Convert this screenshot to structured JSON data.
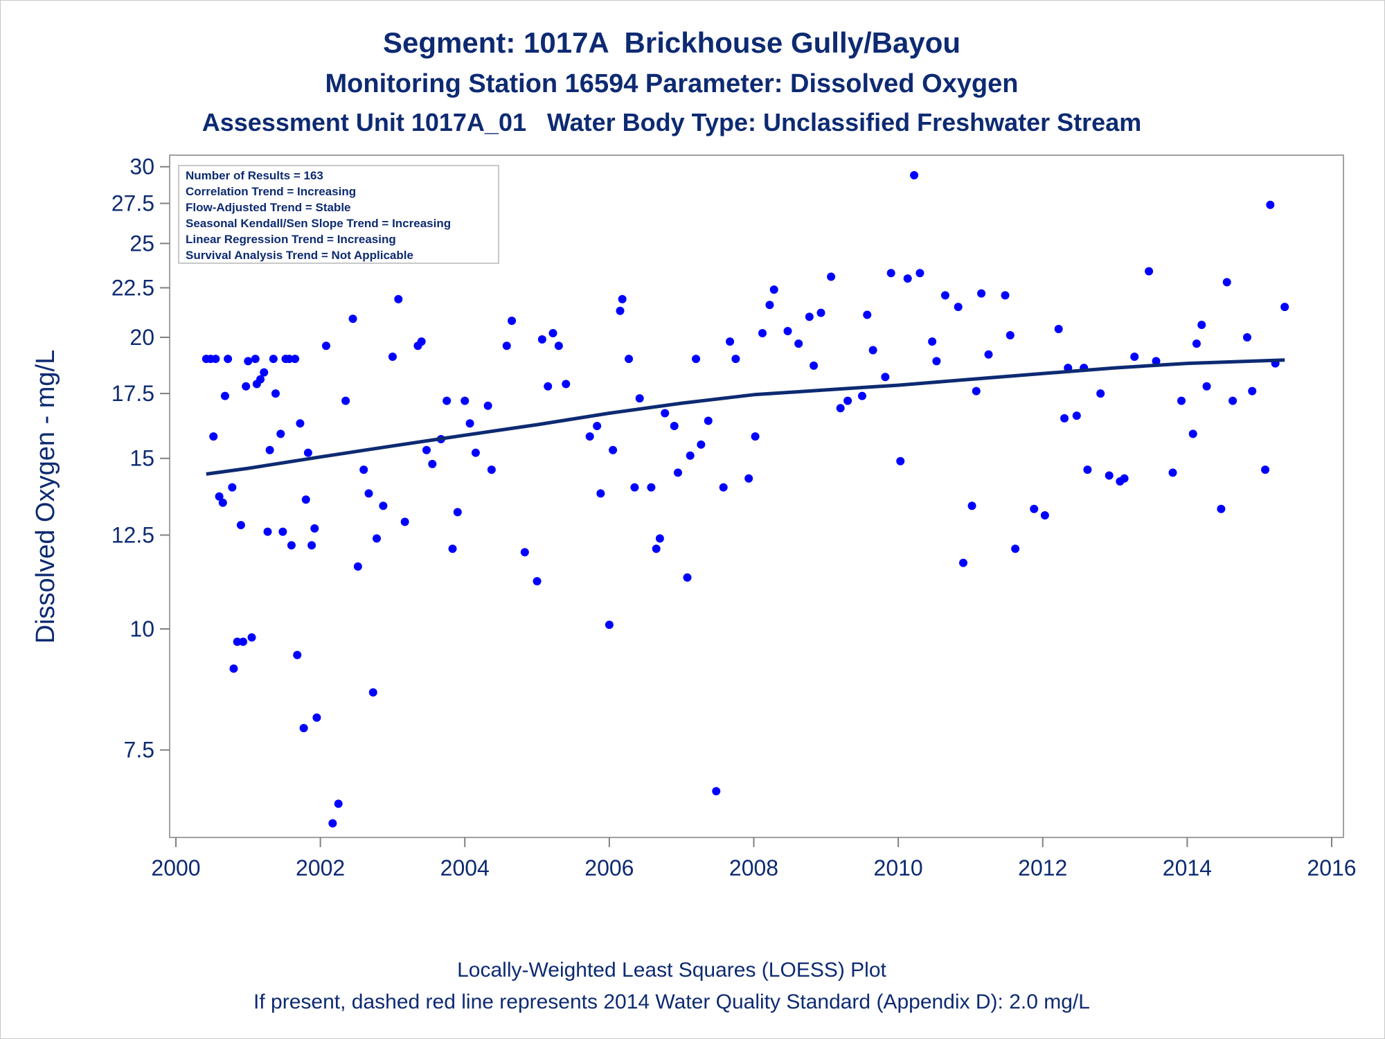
{
  "chart_data": {
    "type": "scatter",
    "title": "Segment: 1017A  Brickhouse Gully/Bayou",
    "subtitle": "Monitoring Station 16594 Parameter: Dissolved Oxygen",
    "subtitle2": "Assessment Unit 1017A_01   Water Body Type: Unclassified Freshwater Stream",
    "xlabel": "",
    "ylabel": "Dissolved Oxygen - mg/L",
    "xlim": [
      2000,
      2016
    ],
    "ylim": [
      5.8,
      30.5
    ],
    "y_scale": "log",
    "x_ticks": [
      2000,
      2002,
      2004,
      2006,
      2008,
      2010,
      2012,
      2014,
      2016
    ],
    "y_ticks": [
      7.5,
      10,
      12.5,
      15,
      17.5,
      20,
      22.5,
      25,
      27.5,
      30
    ],
    "y_tick_labels": [
      "7.5",
      "10",
      "12.5",
      "15",
      "17.5",
      "20",
      "22.5",
      "25",
      "27.5",
      "30"
    ],
    "grid": false,
    "legend_position": "top-left",
    "stats_box": [
      "Number of Results = 163",
      "Correlation Trend = Increasing",
      "Flow-Adjusted Trend = Stable",
      "Seasonal Kendall/Sen Slope Trend = Increasing",
      "Linear Regression Trend = Increasing",
      "Survival Analysis Trend = Not Applicable"
    ],
    "points_color": "#0000ff",
    "trend_color": "#0d2a72",
    "points": [
      [
        2000.42,
        19.0
      ],
      [
        2000.48,
        19.0
      ],
      [
        2000.52,
        15.8
      ],
      [
        2000.55,
        19.0
      ],
      [
        2000.6,
        13.7
      ],
      [
        2000.65,
        13.5
      ],
      [
        2000.68,
        17.4
      ],
      [
        2000.72,
        19.0
      ],
      [
        2000.78,
        14.0
      ],
      [
        2000.8,
        9.1
      ],
      [
        2000.85,
        9.7
      ],
      [
        2000.9,
        12.8
      ],
      [
        2000.93,
        9.7
      ],
      [
        2000.97,
        17.8
      ],
      [
        2001.0,
        18.9
      ],
      [
        2001.05,
        9.8
      ],
      [
        2001.1,
        19.0
      ],
      [
        2001.12,
        17.9
      ],
      [
        2001.17,
        18.1
      ],
      [
        2001.22,
        18.4
      ],
      [
        2001.27,
        12.6
      ],
      [
        2001.3,
        15.3
      ],
      [
        2001.35,
        19.0
      ],
      [
        2001.38,
        17.5
      ],
      [
        2001.45,
        15.9
      ],
      [
        2001.48,
        12.6
      ],
      [
        2001.52,
        19.0
      ],
      [
        2001.57,
        19.0
      ],
      [
        2001.6,
        12.2
      ],
      [
        2001.65,
        19.0
      ],
      [
        2001.68,
        9.4
      ],
      [
        2001.72,
        16.3
      ],
      [
        2001.77,
        7.9
      ],
      [
        2001.8,
        13.6
      ],
      [
        2001.83,
        15.2
      ],
      [
        2001.88,
        12.2
      ],
      [
        2001.92,
        12.7
      ],
      [
        2001.95,
        8.1
      ],
      [
        2002.08,
        19.6
      ],
      [
        2002.17,
        6.3
      ],
      [
        2002.25,
        6.6
      ],
      [
        2002.35,
        17.2
      ],
      [
        2002.45,
        20.9
      ],
      [
        2002.52,
        11.6
      ],
      [
        2002.6,
        14.6
      ],
      [
        2002.67,
        13.8
      ],
      [
        2002.73,
        8.6
      ],
      [
        2002.78,
        12.4
      ],
      [
        2002.87,
        13.4
      ],
      [
        2003.0,
        19.1
      ],
      [
        2003.08,
        21.9
      ],
      [
        2003.17,
        12.9
      ],
      [
        2003.35,
        19.6
      ],
      [
        2003.4,
        19.8
      ],
      [
        2003.47,
        15.3
      ],
      [
        2003.55,
        14.8
      ],
      [
        2003.67,
        15.7
      ],
      [
        2003.75,
        17.2
      ],
      [
        2003.83,
        12.1
      ],
      [
        2003.9,
        13.2
      ],
      [
        2004.0,
        17.2
      ],
      [
        2004.07,
        16.3
      ],
      [
        2004.15,
        15.2
      ],
      [
        2004.32,
        17.0
      ],
      [
        2004.37,
        14.6
      ],
      [
        2004.58,
        19.6
      ],
      [
        2004.65,
        20.8
      ],
      [
        2004.83,
        12.0
      ],
      [
        2005.0,
        11.2
      ],
      [
        2005.07,
        19.9
      ],
      [
        2005.15,
        17.8
      ],
      [
        2005.22,
        20.2
      ],
      [
        2005.3,
        19.6
      ],
      [
        2005.4,
        17.9
      ],
      [
        2005.73,
        15.8
      ],
      [
        2005.83,
        16.2
      ],
      [
        2005.88,
        13.8
      ],
      [
        2006.0,
        10.1
      ],
      [
        2006.05,
        15.3
      ],
      [
        2006.15,
        21.3
      ],
      [
        2006.18,
        21.9
      ],
      [
        2006.27,
        19.0
      ],
      [
        2006.35,
        14.0
      ],
      [
        2006.42,
        17.3
      ],
      [
        2006.58,
        14.0
      ],
      [
        2006.65,
        12.1
      ],
      [
        2006.7,
        12.4
      ],
      [
        2006.77,
        16.7
      ],
      [
        2006.9,
        16.2
      ],
      [
        2006.95,
        14.5
      ],
      [
        2007.08,
        11.3
      ],
      [
        2007.12,
        15.1
      ],
      [
        2007.2,
        19.0
      ],
      [
        2007.27,
        15.5
      ],
      [
        2007.37,
        16.4
      ],
      [
        2007.48,
        6.8
      ],
      [
        2007.58,
        14.0
      ],
      [
        2007.67,
        19.8
      ],
      [
        2007.75,
        19.0
      ],
      [
        2007.93,
        14.3
      ],
      [
        2008.02,
        15.8
      ],
      [
        2008.12,
        20.2
      ],
      [
        2008.22,
        21.6
      ],
      [
        2008.28,
        22.4
      ],
      [
        2008.47,
        20.3
      ],
      [
        2008.62,
        19.7
      ],
      [
        2008.77,
        21.0
      ],
      [
        2008.83,
        18.7
      ],
      [
        2008.93,
        21.2
      ],
      [
        2009.07,
        23.1
      ],
      [
        2009.2,
        16.9
      ],
      [
        2009.3,
        17.2
      ],
      [
        2009.5,
        17.4
      ],
      [
        2009.57,
        21.1
      ],
      [
        2009.65,
        19.4
      ],
      [
        2009.82,
        18.2
      ],
      [
        2009.9,
        23.3
      ],
      [
        2010.03,
        14.9
      ],
      [
        2010.13,
        23.0
      ],
      [
        2010.22,
        29.4
      ],
      [
        2010.3,
        23.3
      ],
      [
        2010.47,
        19.8
      ],
      [
        2010.53,
        18.9
      ],
      [
        2010.65,
        22.1
      ],
      [
        2010.83,
        21.5
      ],
      [
        2010.9,
        11.7
      ],
      [
        2011.02,
        13.4
      ],
      [
        2011.08,
        17.6
      ],
      [
        2011.15,
        22.2
      ],
      [
        2011.25,
        19.2
      ],
      [
        2011.48,
        22.1
      ],
      [
        2011.55,
        20.1
      ],
      [
        2011.62,
        12.1
      ],
      [
        2011.88,
        13.3
      ],
      [
        2012.03,
        13.1
      ],
      [
        2012.22,
        20.4
      ],
      [
        2012.3,
        16.5
      ],
      [
        2012.35,
        18.6
      ],
      [
        2012.47,
        16.6
      ],
      [
        2012.57,
        18.6
      ],
      [
        2012.62,
        14.6
      ],
      [
        2012.8,
        17.5
      ],
      [
        2012.92,
        14.4
      ],
      [
        2013.07,
        14.2
      ],
      [
        2013.13,
        14.3
      ],
      [
        2013.27,
        19.1
      ],
      [
        2013.47,
        23.4
      ],
      [
        2013.57,
        18.9
      ],
      [
        2013.8,
        14.5
      ],
      [
        2013.92,
        17.2
      ],
      [
        2014.08,
        15.9
      ],
      [
        2014.13,
        19.7
      ],
      [
        2014.2,
        20.6
      ],
      [
        2014.27,
        17.8
      ],
      [
        2014.47,
        13.3
      ],
      [
        2014.55,
        22.8
      ],
      [
        2014.63,
        17.2
      ],
      [
        2014.83,
        20.0
      ],
      [
        2014.9,
        17.6
      ],
      [
        2015.08,
        14.6
      ],
      [
        2015.15,
        27.4
      ],
      [
        2015.22,
        18.8
      ],
      [
        2015.35,
        21.5
      ]
    ],
    "loess_trend": [
      [
        2000.42,
        14.45
      ],
      [
        2001.0,
        14.65
      ],
      [
        2002.0,
        15.05
      ],
      [
        2003.0,
        15.45
      ],
      [
        2004.0,
        15.85
      ],
      [
        2005.0,
        16.25
      ],
      [
        2006.0,
        16.7
      ],
      [
        2007.0,
        17.1
      ],
      [
        2008.0,
        17.45
      ],
      [
        2009.0,
        17.65
      ],
      [
        2010.0,
        17.85
      ],
      [
        2011.0,
        18.1
      ],
      [
        2012.0,
        18.35
      ],
      [
        2013.0,
        18.6
      ],
      [
        2014.0,
        18.8
      ],
      [
        2015.35,
        18.95
      ]
    ]
  },
  "footer": {
    "line1": "Locally-Weighted Least Squares (LOESS) Plot",
    "line2": "If present, dashed red line represents 2014 Water Quality Standard (Appendix D): 2.0 mg/L"
  }
}
